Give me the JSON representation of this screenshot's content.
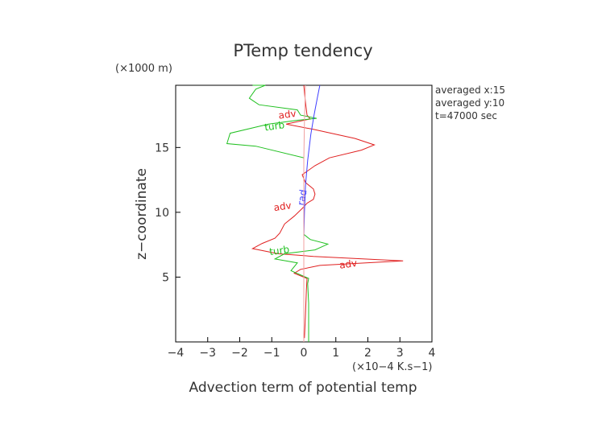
{
  "chart_data": {
    "type": "line",
    "title": "PTemp tendency",
    "xlabel": "Advection term of potential temp",
    "x_unit": "(×10−4 K.s−1)",
    "ylabel": "z−coordinate",
    "y_unit": "(×1000 m)",
    "xlim": [
      -4,
      4
    ],
    "ylim": [
      0,
      19.8
    ],
    "x_ticks": [
      -4,
      -3,
      -2,
      -1,
      0,
      1,
      2,
      3,
      4
    ],
    "x_tick_labels": [
      "−4",
      "−3",
      "−2",
      "−1",
      "0",
      "1",
      "2",
      "3",
      "4"
    ],
    "y_ticks": [
      5,
      10,
      15
    ],
    "y_tick_labels": [
      "5",
      "10",
      "15"
    ],
    "info": [
      "averaged  x:15",
      "averaged  y:10",
      "t=47000 sec"
    ],
    "series": [
      {
        "name": "adv",
        "color": "#e02020",
        "points": [
          [
            0.02,
            0.3
          ],
          [
            0.05,
            2
          ],
          [
            0.08,
            4
          ],
          [
            0.1,
            4.9
          ],
          [
            -0.3,
            5.3
          ],
          [
            -0.1,
            5.6
          ],
          [
            0.5,
            5.9
          ],
          [
            3.1,
            6.25
          ],
          [
            0.3,
            6.6
          ],
          [
            -0.8,
            6.8
          ],
          [
            -1.6,
            7.2
          ],
          [
            -1.3,
            7.6
          ],
          [
            -0.9,
            8.0
          ],
          [
            -0.75,
            8.4
          ],
          [
            -0.6,
            9.1
          ],
          [
            -0.3,
            9.7
          ],
          [
            -0.05,
            10.3
          ],
          [
            0.1,
            10.7
          ],
          [
            0.3,
            11.0
          ],
          [
            0.35,
            11.4
          ],
          [
            0.3,
            11.8
          ],
          [
            0.05,
            12.3
          ],
          [
            -0.05,
            12.9
          ],
          [
            0.35,
            13.6
          ],
          [
            0.8,
            14.2
          ],
          [
            1.8,
            14.8
          ],
          [
            2.2,
            15.2
          ],
          [
            1.6,
            15.7
          ],
          [
            0.3,
            16.4
          ],
          [
            -0.55,
            16.8
          ],
          [
            0.2,
            17.2
          ],
          [
            0.1,
            17.5
          ],
          [
            0.05,
            18.5
          ],
          [
            0.0,
            19.8
          ]
        ],
        "labels": [
          {
            "text": "adv",
            "x": 1.4,
            "y": 5.75
          },
          {
            "text": "adv",
            "x": -0.65,
            "y": 10.2
          },
          {
            "text": "adv",
            "x": -0.5,
            "y": 17.3
          }
        ]
      },
      {
        "name": "turb",
        "color": "#20c020",
        "points": [
          [
            0.15,
            0.0
          ],
          [
            0.15,
            3
          ],
          [
            0.12,
            4.5
          ],
          [
            0.15,
            4.9
          ],
          [
            -0.4,
            5.5
          ],
          [
            -0.2,
            6.1
          ],
          [
            -0.9,
            6.4
          ],
          [
            -0.6,
            6.8
          ],
          [
            0.35,
            7.1
          ],
          [
            0.75,
            7.55
          ],
          [
            0.2,
            7.9
          ],
          [
            0.0,
            8.3
          ],
          [
            0.0,
            12
          ],
          [
            0.0,
            14.2
          ],
          [
            -1.5,
            15.1
          ],
          [
            -2.4,
            15.3
          ],
          [
            -2.3,
            16.1
          ],
          [
            -1.1,
            16.8
          ],
          [
            -0.2,
            17.1
          ],
          [
            0.4,
            17.25
          ],
          [
            -0.1,
            17.5
          ],
          [
            -0.2,
            17.9
          ],
          [
            -1.4,
            18.3
          ],
          [
            -1.7,
            18.8
          ],
          [
            -1.5,
            19.5
          ],
          [
            -1.2,
            19.8
          ],
          [
            -1.6,
            19.8
          ]
        ],
        "labels": [
          {
            "text": "turb",
            "x": -0.75,
            "y": 6.8
          },
          {
            "text": "turb",
            "x": -0.9,
            "y": 16.4
          }
        ]
      },
      {
        "name": "rad",
        "color": "#4040ff",
        "points": [
          [
            0.0,
            0.0
          ],
          [
            0.0,
            5
          ],
          [
            0.0,
            8
          ],
          [
            0.02,
            10
          ],
          [
            0.05,
            12
          ],
          [
            0.12,
            14
          ],
          [
            0.22,
            16
          ],
          [
            0.32,
            17.5
          ],
          [
            0.42,
            18.8
          ],
          [
            0.5,
            19.8
          ]
        ],
        "labels": [
          {
            "text": "rad",
            "x": 0.05,
            "y": 11.1
          }
        ]
      },
      {
        "name": "",
        "color": "#f0a0a0",
        "points": [
          [
            0.0,
            0.0
          ],
          [
            0.0,
            5
          ],
          [
            0.0,
            10
          ],
          [
            0.0,
            14
          ],
          [
            0.02,
            17
          ],
          [
            0.05,
            19.8
          ]
        ],
        "labels": []
      }
    ]
  }
}
